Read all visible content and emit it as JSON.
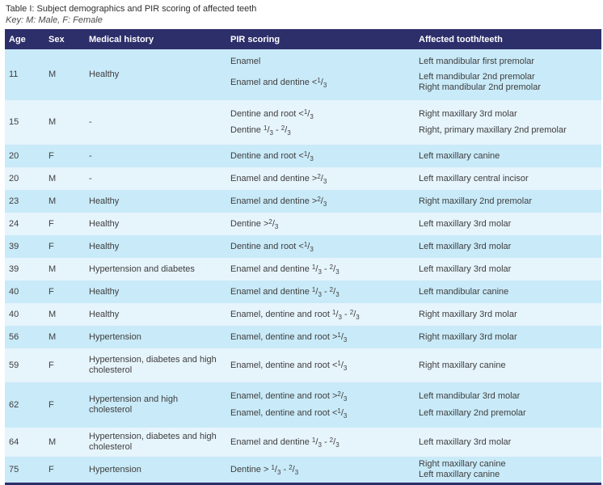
{
  "caption": {
    "title": "Table I: Subject demographics and PIR scoring of affected teeth",
    "key": "Key: M: Male, F: Female"
  },
  "colors": {
    "header_navy": "#2d2f6b",
    "row_blue": "#c9eaf8",
    "row_pale": "#e6f4fc",
    "header_text": "#ffffff",
    "body_text": "#3e3e3e"
  },
  "table": {
    "headers": [
      "Age",
      "Sex",
      "Medical history",
      "PIR scoring",
      "Affected tooth/teeth"
    ],
    "rows": [
      {
        "age": "11",
        "sex": "M",
        "history": "Healthy",
        "groups": [
          {
            "pir": "Enamel",
            "teeth": [
              "Left mandibular first premolar"
            ]
          },
          {
            "pir": "Enamel and dentine <{1/3}",
            "teeth": [
              "Left mandibular 2nd premolar",
              "Right mandibular 2nd premolar"
            ]
          }
        ]
      },
      {
        "age": "15",
        "sex": "M",
        "history": "-",
        "groups": [
          {
            "pir": "Dentine and root <{1/3}",
            "teeth": [
              "Right maxillary 3rd molar"
            ]
          },
          {
            "pir": "Dentine {1/3} - {2/3}",
            "teeth": [
              "Right, primary maxillary 2nd premolar"
            ]
          }
        ]
      },
      {
        "age": "20",
        "sex": "F",
        "history": "-",
        "groups": [
          {
            "pir": "Dentine and root <{1/3}",
            "teeth": [
              "Left maxillary canine"
            ]
          }
        ]
      },
      {
        "age": "20",
        "sex": "M",
        "history": "-",
        "groups": [
          {
            "pir": "Enamel and dentine >{2/3}",
            "teeth": [
              "Left maxillary central incisor"
            ]
          }
        ]
      },
      {
        "age": "23",
        "sex": "M",
        "history": "Healthy",
        "groups": [
          {
            "pir": "Enamel and dentine >{2/3}",
            "teeth": [
              "Right maxillary 2nd premolar"
            ]
          }
        ]
      },
      {
        "age": "24",
        "sex": "F",
        "history": "Healthy",
        "groups": [
          {
            "pir": "Dentine >{2/3}",
            "teeth": [
              "Left maxillary 3rd molar"
            ]
          }
        ]
      },
      {
        "age": "39",
        "sex": "F",
        "history": "Healthy",
        "groups": [
          {
            "pir": "Dentine and root <{1/3}",
            "teeth": [
              "Left maxillary 3rd molar"
            ]
          }
        ]
      },
      {
        "age": "39",
        "sex": "M",
        "history": "Hypertension and diabetes",
        "groups": [
          {
            "pir": "Enamel and dentine {1/3} - {2/3}",
            "teeth": [
              "Left maxillary 3rd molar"
            ]
          }
        ]
      },
      {
        "age": "40",
        "sex": "F",
        "history": "Healthy",
        "groups": [
          {
            "pir": "Enamel and dentine {1/3} - {2/3}",
            "teeth": [
              "Left mandibular canine"
            ]
          }
        ]
      },
      {
        "age": "40",
        "sex": "M",
        "history": "Healthy",
        "groups": [
          {
            "pir": "Enamel, dentine and root {1/3} - {2/3}",
            "teeth": [
              "Right maxillary 3rd molar"
            ]
          }
        ]
      },
      {
        "age": "56",
        "sex": "M",
        "history": "Hypertension",
        "groups": [
          {
            "pir": "Enamel, dentine and root >{1/3}",
            "teeth": [
              "Right maxillary 3rd molar"
            ]
          }
        ]
      },
      {
        "age": "59",
        "sex": "F",
        "history": "Hypertension, diabetes and high cholesterol",
        "groups": [
          {
            "pir": "Enamel, dentine and root <{1/3}",
            "teeth": [
              "Right maxillary canine"
            ]
          }
        ]
      },
      {
        "age": "62",
        "sex": "F",
        "history": "Hypertension and high cholesterol",
        "groups": [
          {
            "pir": "Enamel, dentine and root >{2/3}",
            "teeth": [
              "Left mandibular 3rd molar"
            ]
          },
          {
            "pir": "Enamel, dentine and root <{1/3}",
            "teeth": [
              "Left maxillary 2nd premolar"
            ]
          }
        ]
      },
      {
        "age": "64",
        "sex": "M",
        "history": "Hypertension, diabetes and high cholesterol",
        "groups": [
          {
            "pir": "Enamel and dentine {1/3} - {2/3}",
            "teeth": [
              "Left maxillary 3rd molar"
            ]
          }
        ]
      },
      {
        "age": "75",
        "sex": "F",
        "history": "Hypertension",
        "groups": [
          {
            "pir": "Dentine > {1/3} - {2/3}",
            "teeth": [
              "Right maxillary canine",
              "Left maxillary canine"
            ]
          }
        ]
      }
    ]
  }
}
